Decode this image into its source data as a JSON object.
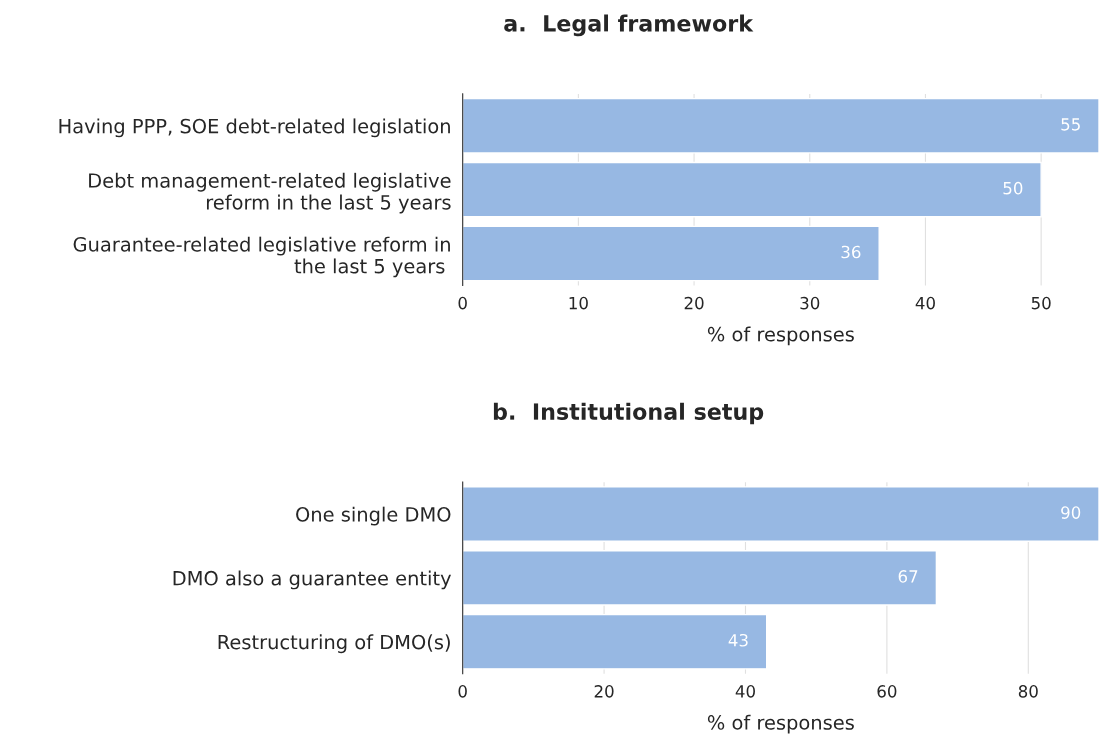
{
  "chart_data": [
    {
      "type": "bar",
      "orientation": "horizontal",
      "title": "a.  Legal framework",
      "xlabel": "% of responses",
      "categories": [
        "Having PPP, SOE debt-related legislation",
        "Debt management-related legislative\nreform in the last 5 years",
        "Guarantee-related legislative reform in\nthe last 5 years "
      ],
      "values": [
        55,
        50,
        36
      ],
      "color": "#97b8e3",
      "xlim": [
        0,
        55
      ],
      "xticks": [
        0,
        10,
        20,
        30,
        40,
        50
      ],
      "grid": "x",
      "data_labels": true,
      "legend": false
    },
    {
      "type": "bar",
      "orientation": "horizontal",
      "title": "b.  Institutional setup",
      "xlabel": "% of responses",
      "categories": [
        "One single DMO",
        "DMO also a guarantee entity",
        "Restructuring of DMO(s)"
      ],
      "values": [
        90,
        67,
        43
      ],
      "color": "#97b8e3",
      "xlim": [
        0,
        90
      ],
      "xticks": [
        0,
        20,
        40,
        60,
        80
      ],
      "grid": "x",
      "data_labels": true,
      "legend": false
    }
  ]
}
